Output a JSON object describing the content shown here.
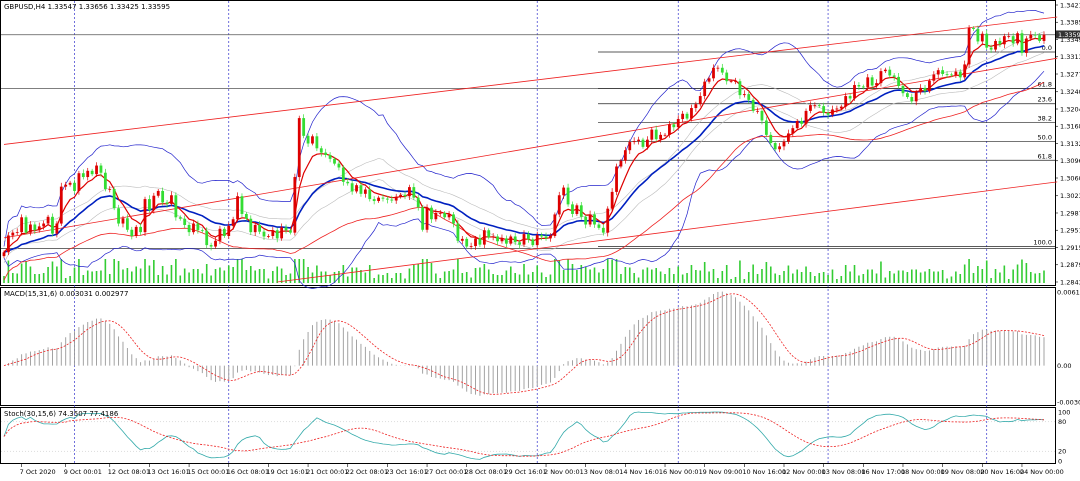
{
  "chart_data": {
    "type": "candlestick",
    "main": {
      "title": "GBPUSD,H4  1.33547 1.33656 1.33425 1.33595",
      "current_price_label": "1.33595",
      "ylim": [
        1.2843,
        1.3421
      ],
      "y_ticks": [
        "1.34210",
        "1.33850",
        "1.33490",
        "1.33130",
        "1.32770",
        "1.32400",
        "1.32040",
        "1.31680",
        "1.31320",
        "1.30960",
        "1.30600",
        "1.30230",
        "1.29870",
        "1.29510",
        "1.29150",
        "1.28790",
        "1.28430"
      ],
      "fib_levels": [
        {
          "label": "0.0",
          "price": 1.3323
        },
        {
          "label": "61.8",
          "price": 1.3247
        },
        {
          "label": "23.6",
          "price": 1.3215
        },
        {
          "label": "38.2",
          "price": 1.3176
        },
        {
          "label": "50.0",
          "price": 1.3136
        },
        {
          "label": "61.8",
          "price": 1.3097
        },
        {
          "label": "100.0",
          "price": 1.2917
        }
      ],
      "hlines": [
        1.3359,
        1.3247,
        1.2913
      ],
      "trendlines": [
        {
          "name": "upper-channel",
          "from": [
            0,
            1.313
          ],
          "to": [
            239,
            1.3396
          ]
        },
        {
          "name": "middle-line",
          "from": [
            0,
            1.2935
          ],
          "to": [
            239,
            1.331
          ]
        },
        {
          "name": "lower-channel",
          "from": [
            62,
            1.2843
          ],
          "to": [
            239,
            1.3052
          ]
        }
      ],
      "close": [
        1.2905,
        1.294,
        1.2946,
        1.2947,
        1.2978,
        1.2946,
        1.2963,
        1.2951,
        1.2959,
        1.2965,
        1.2979,
        1.2944,
        1.2965,
        1.3042,
        1.3046,
        1.305,
        1.3033,
        1.307,
        1.3062,
        1.3075,
        1.3068,
        1.3086,
        1.3071,
        1.3037,
        1.3037,
        1.2997,
        1.2965,
        1.2976,
        1.2952,
        1.2939,
        1.2958,
        1.2947,
        1.3016,
        1.2993,
        1.3023,
        1.3033,
        1.3009,
        1.3006,
        1.3024,
        1.2978,
        1.2975,
        1.2962,
        1.2947,
        1.2965,
        1.2951,
        1.295,
        1.292,
        1.2917,
        1.2929,
        1.2954,
        1.2939,
        1.296,
        1.2974,
        1.3022,
        1.2985,
        1.2975,
        1.2947,
        1.2962,
        1.2948,
        1.2938,
        1.2939,
        1.2951,
        1.2934,
        1.2957,
        1.2951,
        1.2946,
        1.3062,
        1.3185,
        1.3148,
        1.3132,
        1.3147,
        1.3122,
        1.3113,
        1.3108,
        1.31,
        1.309,
        1.3082,
        1.3052,
        1.3049,
        1.3032,
        1.3045,
        1.3027,
        1.3036,
        1.3016,
        1.3012,
        1.3019,
        1.3017,
        1.3015,
        1.3013,
        1.3021,
        1.3025,
        1.3022,
        1.3041,
        1.3019,
        1.2999,
        1.2952,
        1.2998,
        1.2974,
        1.2987,
        1.2987,
        1.2978,
        1.2984,
        1.2965,
        1.2929,
        1.2933,
        1.2917,
        1.2918,
        1.2934,
        1.2921,
        1.2951,
        1.2936,
        1.2938,
        1.2928,
        1.2934,
        1.2923,
        1.2938,
        1.2926,
        1.2921,
        1.2943,
        1.2932,
        1.292,
        1.2941,
        1.2938,
        1.2934,
        1.2939,
        1.2984,
        1.3024,
        1.304,
        1.3005,
        1.2985,
        1.3003,
        1.2979,
        1.2963,
        1.2984,
        1.2963,
        1.2956,
        1.2946,
        1.2996,
        1.3031,
        1.3084,
        1.3096,
        1.3118,
        1.3135,
        1.3137,
        1.314,
        1.3125,
        1.314,
        1.3161,
        1.3141,
        1.315,
        1.315,
        1.3172,
        1.3166,
        1.3183,
        1.3194,
        1.3184,
        1.3206,
        1.3214,
        1.3231,
        1.3261,
        1.3268,
        1.329,
        1.329,
        1.328,
        1.3262,
        1.3262,
        1.3262,
        1.3233,
        1.3235,
        1.3223,
        1.32,
        1.32,
        1.318,
        1.315,
        1.3133,
        1.312,
        1.3126,
        1.3136,
        1.3153,
        1.3164,
        1.3179,
        1.3173,
        1.32,
        1.3212,
        1.3212,
        1.321,
        1.3196,
        1.3192,
        1.3203,
        1.3205,
        1.3209,
        1.3231,
        1.3226,
        1.3254,
        1.3251,
        1.3249,
        1.327,
        1.3253,
        1.3258,
        1.3283,
        1.3286,
        1.3274,
        1.3271,
        1.3252,
        1.3237,
        1.3229,
        1.322,
        1.3239,
        1.3248,
        1.3241,
        1.3263,
        1.3276,
        1.3285,
        1.3277,
        1.3276,
        1.3275,
        1.3282,
        1.327,
        1.3297,
        1.3373,
        1.3371,
        1.3345,
        1.3361,
        1.3332,
        1.3328,
        1.3346,
        1.3339,
        1.3356,
        1.3356,
        1.3341,
        1.3362,
        1.3321,
        1.3351,
        1.3359,
        1.3358,
        1.3346,
        1.3359
      ],
      "series": [
        {
          "name": "MA fast",
          "color": "#dd0000"
        },
        {
          "name": "MA slow",
          "color": "#0020c0"
        },
        {
          "name": "Bollinger upper/lower",
          "color": "#0000dd"
        },
        {
          "name": "Envelope",
          "color": "#ee2222"
        }
      ]
    },
    "macd": {
      "label": "MACD(15,31,6) 0.003031 0.002977",
      "y_ticks": [
        "0.006138",
        "0.00",
        "-0.00303"
      ],
      "ylim": [
        -0.00303,
        0.006138
      ]
    },
    "stoch": {
      "label": "Stoch(30,15,6) 74.3507 77.4186",
      "y_ticks": [
        "100",
        "80",
        "20",
        "0"
      ],
      "ylim": [
        0,
        100
      ]
    },
    "x_ticks": [
      {
        "label": "7 Oct 2020",
        "i": 4
      },
      {
        "label": "9 Oct 00:01",
        "i": 14
      },
      {
        "label": "12 Oct 08:01",
        "i": 24
      },
      {
        "label": "13 Oct 16:01",
        "i": 33
      },
      {
        "label": "15 Oct 00:01",
        "i": 42
      },
      {
        "label": "16 Oct 08:01",
        "i": 51
      },
      {
        "label": "19 Oct 16:01",
        "i": 60
      },
      {
        "label": "21 Oct 00:01",
        "i": 69
      },
      {
        "label": "22 Oct 08:01",
        "i": 78
      },
      {
        "label": "23 Oct 16:01",
        "i": 87
      },
      {
        "label": "27 Oct 00:01",
        "i": 96
      },
      {
        "label": "28 Oct 08:01",
        "i": 105
      },
      {
        "label": "29 Oct 16:01",
        "i": 114
      },
      {
        "label": "2 Nov 00:01",
        "i": 123
      },
      {
        "label": "3 Nov 08:01",
        "i": 132
      },
      {
        "label": "4 Nov 16:01",
        "i": 141
      },
      {
        "label": "6 Nov 00:01",
        "i": 150
      },
      {
        "label": "9 Nov 09:00",
        "i": 159
      },
      {
        "label": "10 Nov 16:00",
        "i": 168
      },
      {
        "label": "12 Nov 00:00",
        "i": 177
      },
      {
        "label": "13 Nov 08:00",
        "i": 186
      },
      {
        "label": "16 Nov 17:00",
        "i": 195
      },
      {
        "label": "18 Nov 00:00",
        "i": 204
      },
      {
        "label": "19 Nov 08:00",
        "i": 213
      },
      {
        "label": "20 Nov 16:00",
        "i": 222
      },
      {
        "label": "24 Nov 00:00",
        "i": 231
      }
    ],
    "session_separators": [
      16,
      51,
      121,
      153,
      187,
      223
    ],
    "colors": {
      "up": "#dd0000",
      "down": "#33dd33",
      "grid_v": "#3333cc",
      "text": "#000000"
    }
  }
}
